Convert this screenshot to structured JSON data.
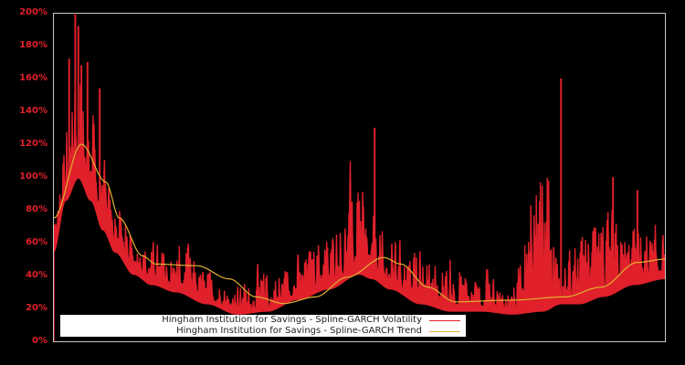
{
  "chart_data": {
    "type": "line",
    "title": "",
    "xlabel": "",
    "ylabel": "",
    "ylim": [
      0,
      200
    ],
    "y_ticks": [
      "0%",
      "20%",
      "40%",
      "60%",
      "80%",
      "100%",
      "120%",
      "140%",
      "160%",
      "180%",
      "200%"
    ],
    "grid": false,
    "legend_position": "lower-left inside plot",
    "background": "#000000",
    "series": [
      {
        "name": "Hingham Institution for Savings - Spline-GARCH Volatility",
        "color": "#e0202b",
        "style": "noisy spiky volatility series",
        "approx_x_fraction": [
          0.0,
          0.02,
          0.04,
          0.06,
          0.08,
          0.1,
          0.13,
          0.16,
          0.2,
          0.25,
          0.3,
          0.35,
          0.4,
          0.45,
          0.5,
          0.52,
          0.55,
          0.6,
          0.65,
          0.7,
          0.75,
          0.8,
          0.83,
          0.86,
          0.9,
          0.95,
          1.0
        ],
        "approx_base": [
          60,
          95,
          110,
          95,
          75,
          60,
          45,
          38,
          33,
          25,
          18,
          20,
          28,
          35,
          45,
          42,
          35,
          25,
          20,
          20,
          18,
          20,
          25,
          25,
          30,
          38,
          42
        ],
        "approx_peaks": [
          80,
          170,
          199,
          165,
          120,
          100,
          80,
          70,
          75,
          55,
          45,
          60,
          65,
          95,
          130,
          90,
          75,
          70,
          65,
          55,
          45,
          160,
          60,
          85,
          100,
          92,
          80
        ]
      },
      {
        "name": "Hingham Institution for Savings - Spline-GARCH Trend",
        "color": "#e0b030",
        "style": "smooth trend line",
        "approx_x_fraction": [
          0.0,
          0.045,
          0.085,
          0.107,
          0.145,
          0.167,
          0.234,
          0.287,
          0.331,
          0.376,
          0.428,
          0.48,
          0.54,
          0.568,
          0.612,
          0.657,
          0.746,
          0.836,
          0.896,
          0.955,
          1.0
        ],
        "values": [
          75,
          120,
          97,
          75,
          52,
          47,
          46,
          38,
          27,
          23,
          27,
          39,
          51,
          47,
          33,
          24,
          25,
          27,
          33,
          48,
          50
        ]
      }
    ]
  },
  "legend": {
    "items": [
      {
        "label": "Hingham Institution for Savings - Spline-GARCH Volatility",
        "color": "#e0202b"
      },
      {
        "label": "Hingham Institution for Savings - Spline-GARCH Trend",
        "color": "#e0b030"
      }
    ]
  }
}
